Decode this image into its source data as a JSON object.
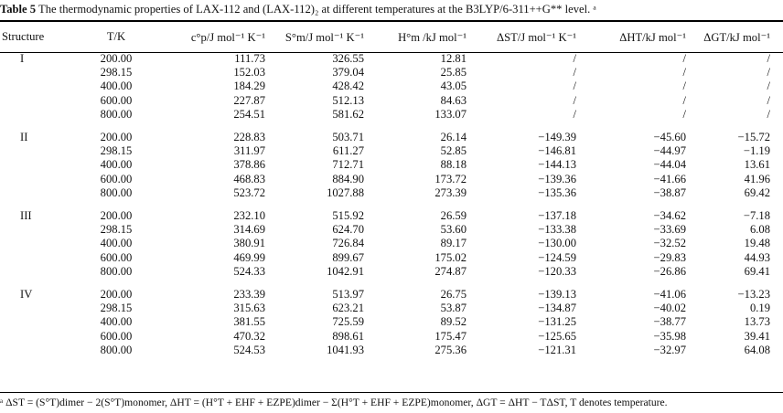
{
  "caption": {
    "label": "Table 5",
    "text": "The thermodynamic properties of LAX-112 and (LAX-112)₂ at different temperatures at the B3LYP/6-311++G** level. ᵃ"
  },
  "headers": [
    "Structure",
    "T/K",
    "c°p/J mol⁻¹ K⁻¹",
    "S°m/J mol⁻¹ K⁻¹",
    "H°m /kJ mol⁻¹",
    "ΔST/J mol⁻¹ K⁻¹",
    "ΔHT/kJ mol⁻¹",
    "ΔGT/kJ mol⁻¹"
  ],
  "groups": [
    {
      "structure": "I",
      "rows": [
        [
          "200.00",
          "111.73",
          "326.55",
          "12.81",
          "/",
          "/",
          "/"
        ],
        [
          "298.15",
          "152.03",
          "379.04",
          "25.85",
          "/",
          "/",
          "/"
        ],
        [
          "400.00",
          "184.29",
          "428.42",
          "43.05",
          "/",
          "/",
          "/"
        ],
        [
          "600.00",
          "227.87",
          "512.13",
          "84.63",
          "/",
          "/",
          "/"
        ],
        [
          "800.00",
          "254.51",
          "581.62",
          "133.07",
          "/",
          "/",
          "/"
        ]
      ]
    },
    {
      "structure": "II",
      "rows": [
        [
          "200.00",
          "228.83",
          "503.71",
          "26.14",
          "−149.39",
          "−45.60",
          "−15.72"
        ],
        [
          "298.15",
          "311.97",
          "611.27",
          "52.85",
          "−146.81",
          "−44.97",
          "−1.19"
        ],
        [
          "400.00",
          "378.86",
          "712.71",
          "88.18",
          "−144.13",
          "−44.04",
          "13.61"
        ],
        [
          "600.00",
          "468.83",
          "884.90",
          "173.72",
          "−139.36",
          "−41.66",
          "41.96"
        ],
        [
          "800.00",
          "523.72",
          "1027.88",
          "273.39",
          "−135.36",
          "−38.87",
          "69.42"
        ]
      ]
    },
    {
      "structure": "III",
      "rows": [
        [
          "200.00",
          "232.10",
          "515.92",
          "26.59",
          "−137.18",
          "−34.62",
          "−7.18"
        ],
        [
          "298.15",
          "314.69",
          "624.70",
          "53.60",
          "−133.38",
          "−33.69",
          "6.08"
        ],
        [
          "400.00",
          "380.91",
          "726.84",
          "89.17",
          "−130.00",
          "−32.52",
          "19.48"
        ],
        [
          "600.00",
          "469.99",
          "899.67",
          "175.02",
          "−124.59",
          "−29.83",
          "44.93"
        ],
        [
          "800.00",
          "524.33",
          "1042.91",
          "274.87",
          "−120.33",
          "−26.86",
          "69.41"
        ]
      ]
    },
    {
      "structure": "IV",
      "rows": [
        [
          "200.00",
          "233.39",
          "513.97",
          "26.75",
          "−139.13",
          "−41.06",
          "−13.23"
        ],
        [
          "298.15",
          "315.63",
          "623.21",
          "53.87",
          "−134.87",
          "−40.02",
          "0.19"
        ],
        [
          "400.00",
          "381.55",
          "725.59",
          "89.52",
          "−131.25",
          "−38.77",
          "13.73"
        ],
        [
          "600.00",
          "470.32",
          "898.61",
          "175.47",
          "−125.65",
          "−35.98",
          "39.41"
        ],
        [
          "800.00",
          "524.53",
          "1041.93",
          "275.36",
          "−121.31",
          "−32.97",
          "64.08"
        ]
      ]
    }
  ],
  "footnote": "ᵃ ΔST = (S°T)dimer − 2(S°T)monomer, ΔHT = (H°T + EHF + EZPE)dimer − Σ(H°T + EHF + EZPE)monomer, ΔGT = ΔHT − TΔST, T denotes temperature."
}
